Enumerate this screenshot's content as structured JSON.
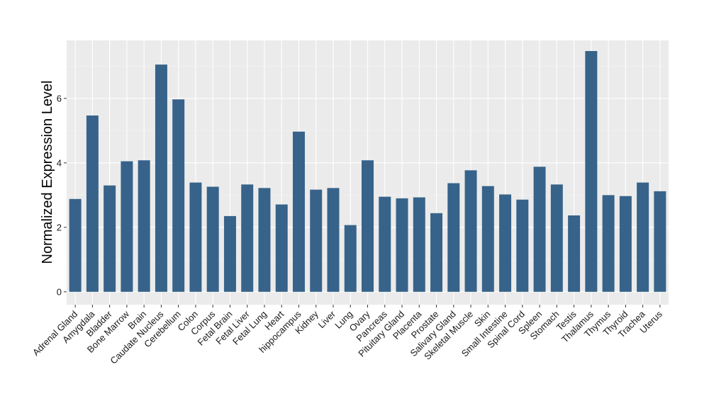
{
  "chart_data": {
    "type": "bar",
    "title": "",
    "xlabel": "",
    "ylabel": "Normalized Expression Level",
    "ylim": [
      -0.4,
      7.8
    ],
    "yticks": [
      0,
      2,
      4,
      6
    ],
    "grid": true,
    "colors": {
      "bar": "#37638a",
      "panel": "#ebebeb",
      "grid_major": "#ffffff",
      "grid_minor": "#f4f4f4"
    },
    "categories": [
      "Adrenal Gland",
      "Amygdala",
      "Bladder",
      "Bone Marrow",
      "Brain",
      "Caudate Nucleus",
      "Cerebellum",
      "Colon",
      "Corpus",
      "Fetal Brain",
      "Fetal Liver",
      "Fetal Lung",
      "Heart",
      "hippocampus",
      "Kidney",
      "Liver",
      "Lung",
      "Ovary",
      "Pancreas",
      "Pituitary Gland",
      "Placenta",
      "Prostate",
      "Salivary Gland",
      "Skeletal Muscle",
      "Skin",
      "Small Intestine",
      "Spinal Cord",
      "Spleen",
      "Stomach",
      "Testis",
      "Thalamus",
      "Thymus",
      "Thyroid",
      "Trachea",
      "Uterus"
    ],
    "values": [
      2.88,
      5.47,
      3.3,
      4.05,
      4.08,
      7.05,
      5.97,
      3.39,
      3.26,
      2.35,
      3.33,
      3.22,
      2.71,
      4.97,
      3.17,
      3.22,
      2.07,
      4.08,
      2.95,
      2.9,
      2.93,
      2.44,
      3.37,
      3.77,
      3.28,
      3.02,
      2.86,
      3.88,
      3.33,
      2.37,
      7.47,
      3.0,
      2.97,
      3.39,
      3.12
    ]
  }
}
